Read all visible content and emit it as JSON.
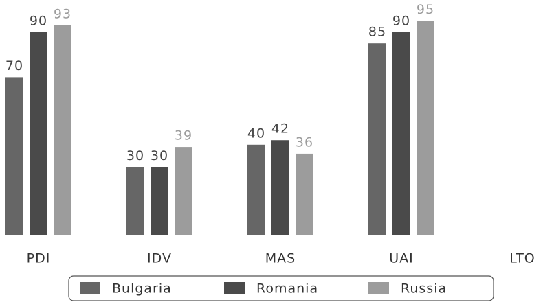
{
  "chart_data": {
    "type": "bar",
    "categories": [
      "PDI",
      "IDV",
      "MAS",
      "UAI",
      "LTO"
    ],
    "series": [
      {
        "name": "Bulgaria",
        "color": "#666666",
        "values": [
          70,
          30,
          40,
          85,
          null
        ]
      },
      {
        "name": "Romania",
        "color": "#4a4a4a",
        "values": [
          90,
          30,
          42,
          90,
          null
        ]
      },
      {
        "name": "Russia",
        "color": "#9c9c9c",
        "values": [
          93,
          39,
          36,
          95,
          null
        ]
      }
    ],
    "label_colors": [
      "#444444",
      "#444444",
      "#9c9c9c"
    ]
  }
}
